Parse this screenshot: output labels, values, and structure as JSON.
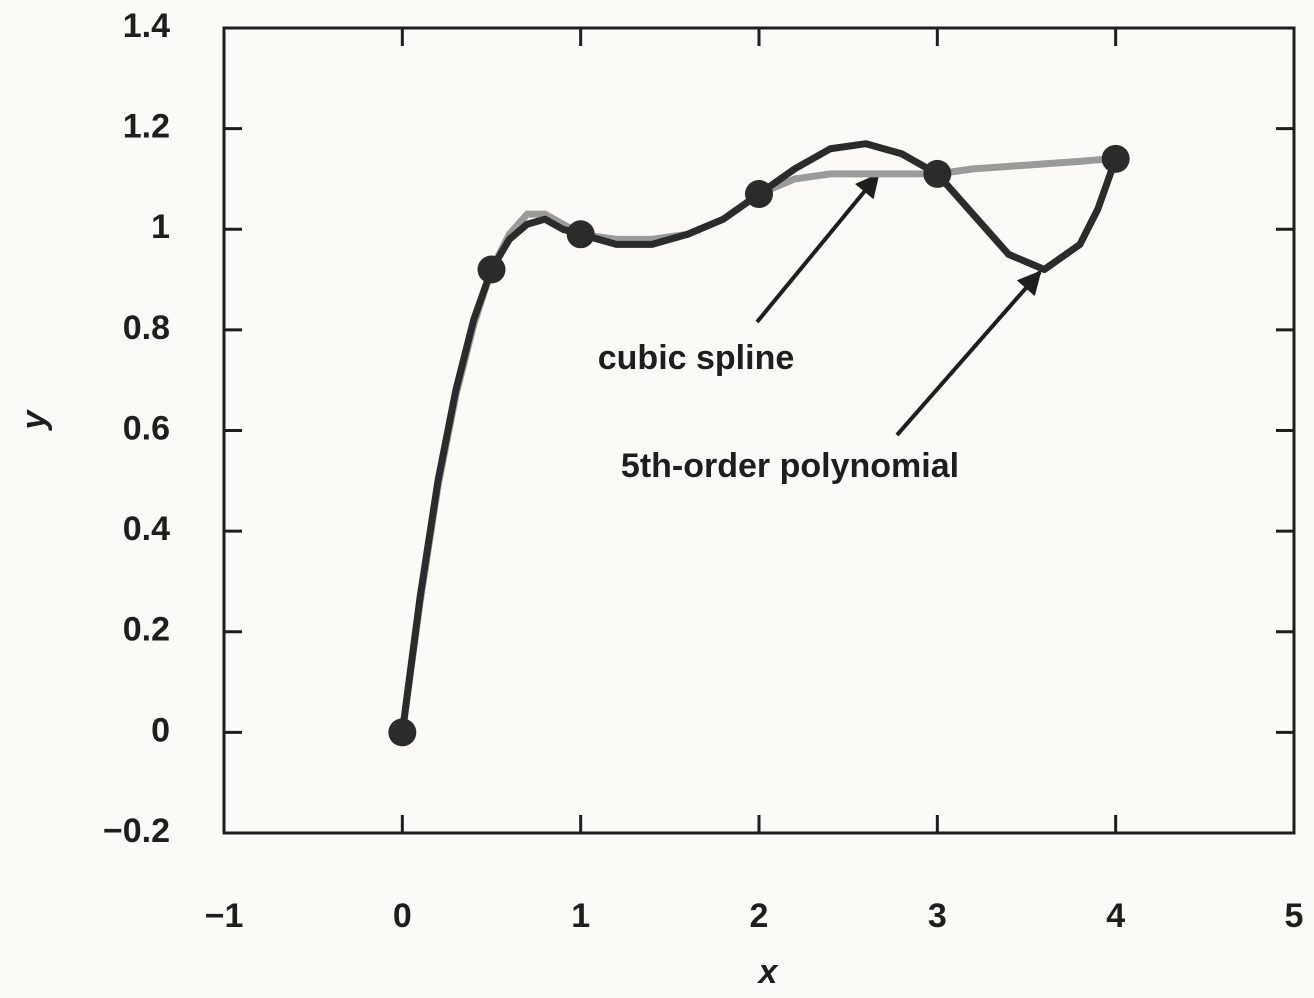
{
  "chart_data": {
    "type": "line",
    "xlabel": "x",
    "ylabel": "y",
    "xlim": [
      -1,
      5
    ],
    "xticks": [
      {
        "value": -1,
        "label": "−1"
      },
      0,
      1,
      2,
      3,
      4,
      5
    ],
    "ylim": [
      -0.2,
      1.4
    ],
    "yticks": [
      {
        "value": -0.2,
        "label": "−0.2"
      },
      0,
      0.2,
      0.4,
      0.6,
      0.8,
      1,
      1.2,
      1.4
    ],
    "series": [
      {
        "name": "cubic spline",
        "color": "#9a9a9a",
        "x": [
          0,
          0.1,
          0.2,
          0.3,
          0.4,
          0.5,
          0.6,
          0.7,
          0.8,
          0.9,
          1,
          1.2,
          1.4,
          1.6,
          1.8,
          2,
          2.2,
          2.4,
          2.6,
          2.8,
          3,
          3.2,
          3.4,
          3.6,
          3.8,
          3.9,
          4
        ],
        "values": [
          0,
          0.26,
          0.49,
          0.67,
          0.81,
          0.92,
          0.99,
          1.03,
          1.03,
          1.01,
          0.99,
          0.98,
          0.98,
          0.99,
          1.02,
          1.07,
          1.1,
          1.11,
          1.11,
          1.11,
          1.11,
          1.12,
          1.125,
          1.13,
          1.135,
          1.138,
          1.14
        ]
      },
      {
        "name": "5th-order polynomial",
        "color": "#2b2b2b",
        "x": [
          0,
          0.1,
          0.2,
          0.3,
          0.4,
          0.5,
          0.6,
          0.7,
          0.8,
          0.9,
          1,
          1.2,
          1.4,
          1.6,
          1.8,
          2,
          2.2,
          2.4,
          2.6,
          2.8,
          3,
          3.2,
          3.4,
          3.6,
          3.8,
          3.9,
          4
        ],
        "values": [
          0,
          0.27,
          0.5,
          0.68,
          0.82,
          0.92,
          0.98,
          1.01,
          1.02,
          1.0,
          0.99,
          0.97,
          0.97,
          0.99,
          1.02,
          1.07,
          1.12,
          1.16,
          1.17,
          1.15,
          1.11,
          1.03,
          0.95,
          0.92,
          0.97,
          1.04,
          1.14
        ]
      }
    ],
    "points": {
      "color": "#2b2b2b",
      "x": [
        0,
        0.5,
        1,
        2,
        3,
        4
      ],
      "values": [
        0,
        0.92,
        0.99,
        1.07,
        1.11,
        1.14
      ]
    }
  }
}
